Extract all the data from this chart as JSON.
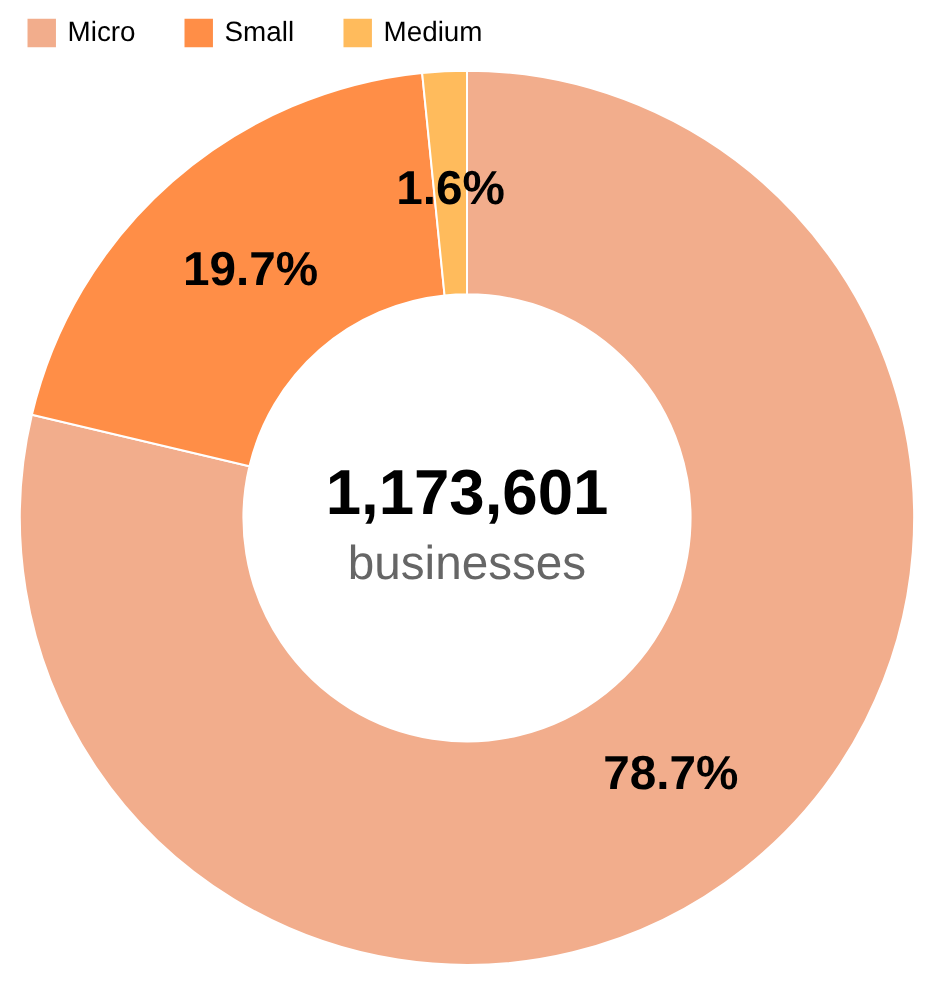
{
  "chart_data": {
    "type": "donut",
    "categories": [
      "Micro",
      "Small",
      "Medium"
    ],
    "values": [
      78.7,
      19.7,
      1.6
    ],
    "colors": [
      "#f2ad8c",
      "#ff8e47",
      "#ffbb5c"
    ],
    "value_labels": [
      "78.7%",
      "19.7%",
      "1.6%"
    ],
    "legend": "top",
    "annotations": [
      "1,173,601",
      "businesses"
    ]
  }
}
